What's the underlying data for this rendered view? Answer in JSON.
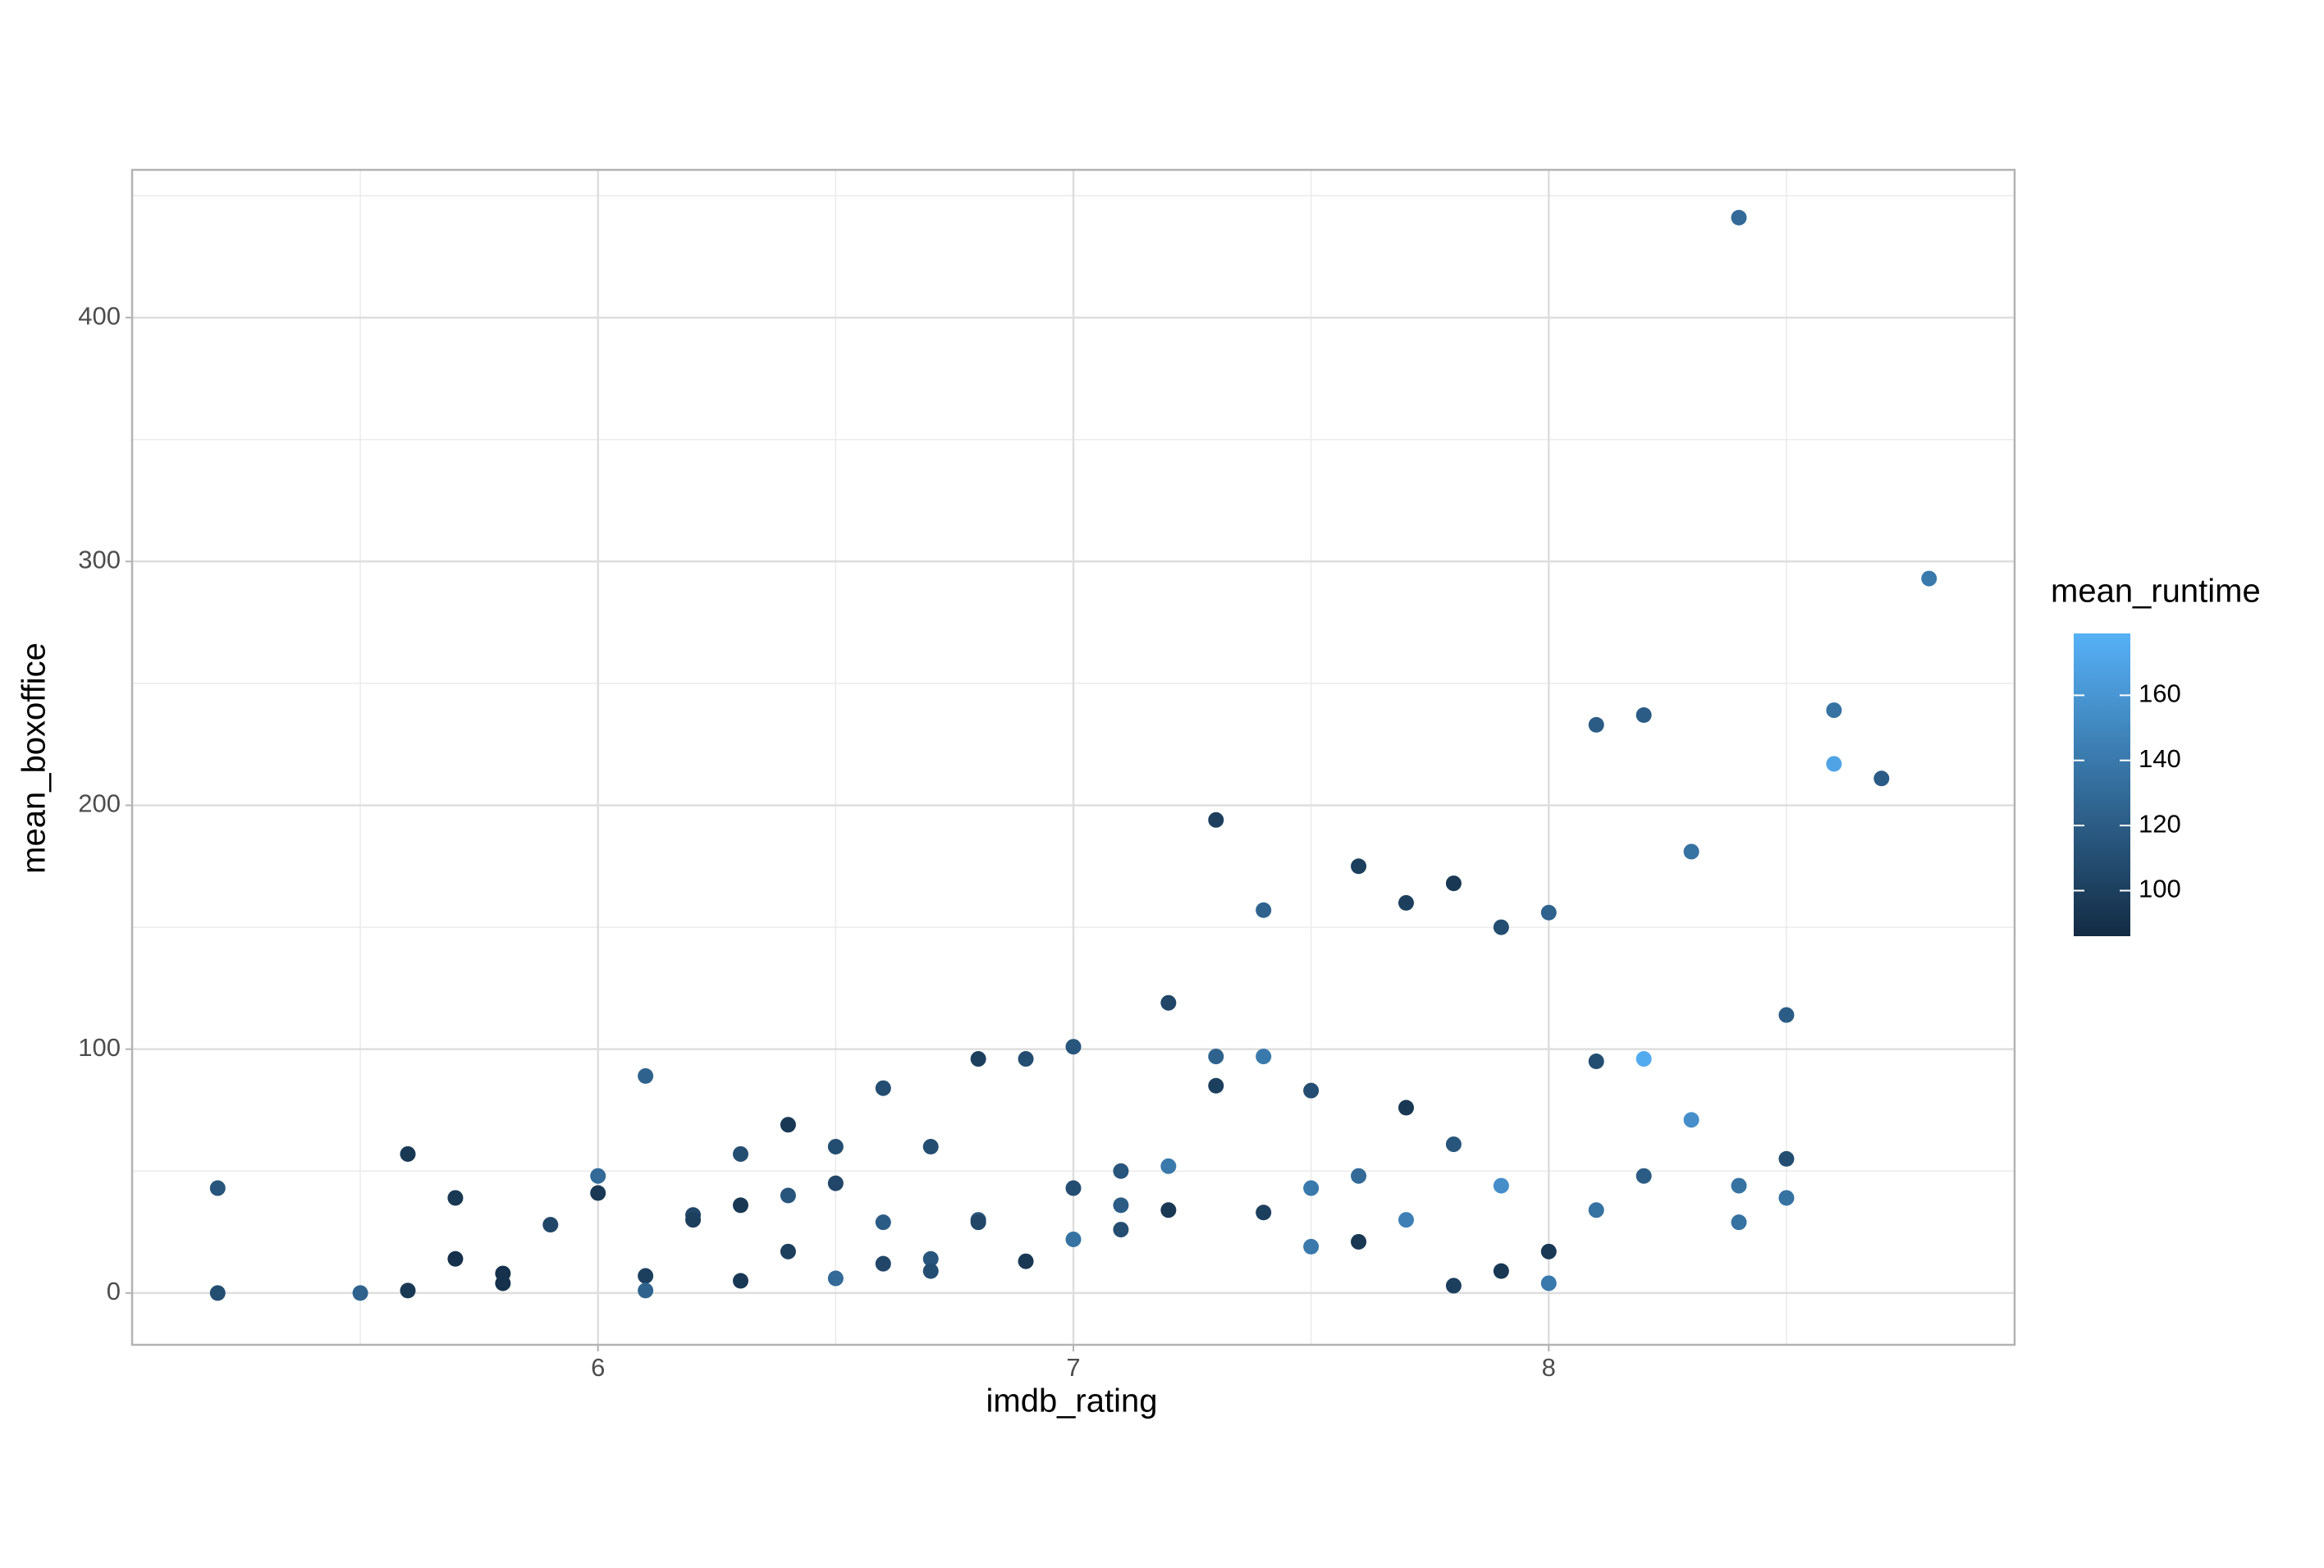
{
  "chart_data": {
    "type": "scatter",
    "x_label": "imdb_rating",
    "y_label": "mean_boxoffice",
    "color_title": "mean_runtime",
    "color_low": "#132b43",
    "color_high": "#56b1f7",
    "color_lim": [
      86,
      179
    ],
    "color_ticks": [
      100,
      120,
      140,
      160
    ],
    "x": [
      5.2,
      5.2,
      5.5,
      5.6,
      5.6,
      5.7,
      5.7,
      5.8,
      5.8,
      5.9,
      6.0,
      6.0,
      6.1,
      6.1,
      6.1,
      6.2,
      6.2,
      6.3,
      6.3,
      6.3,
      6.4,
      6.4,
      6.4,
      6.5,
      6.5,
      6.5,
      6.6,
      6.6,
      6.6,
      6.7,
      6.7,
      6.7,
      6.8,
      6.8,
      6.8,
      6.9,
      6.9,
      7.0,
      7.0,
      7.0,
      7.1,
      7.1,
      7.1,
      7.2,
      7.2,
      7.2,
      7.3,
      7.3,
      7.3,
      7.4,
      7.4,
      7.4,
      7.5,
      7.5,
      7.5,
      7.6,
      7.6,
      7.6,
      7.7,
      7.7,
      7.7,
      7.8,
      7.8,
      7.8,
      7.9,
      7.9,
      7.9,
      8.0,
      8.0,
      8.0,
      8.1,
      8.1,
      8.1,
      8.2,
      8.2,
      8.2,
      8.3,
      8.3,
      8.4,
      8.4,
      8.4,
      8.5,
      8.5,
      8.5,
      8.6,
      8.6,
      8.7,
      8.8
    ],
    "values": [
      43,
      0,
      0,
      57,
      1,
      39,
      14,
      8,
      4,
      28,
      48,
      41,
      89,
      7,
      1,
      32,
      30,
      57,
      36,
      5,
      69,
      40,
      17,
      60,
      45,
      6,
      84,
      29,
      12,
      60,
      14,
      9,
      96,
      30,
      29,
      96,
      13,
      101,
      43,
      22,
      50,
      36,
      26,
      119,
      52,
      34,
      194,
      97,
      85,
      157,
      97,
      33,
      83,
      43,
      19,
      175,
      48,
      21,
      160,
      76,
      30,
      168,
      61,
      3,
      150,
      44,
      9,
      156,
      17,
      4,
      233,
      95,
      34,
      237,
      96,
      48,
      181,
      71,
      441,
      44,
      29,
      114,
      55,
      39,
      239,
      217,
      211,
      293
    ],
    "color_values": [
      115,
      110,
      125,
      95,
      95,
      95,
      90,
      90,
      90,
      105,
      130,
      95,
      125,
      100,
      125,
      105,
      100,
      110,
      95,
      95,
      95,
      115,
      100,
      110,
      105,
      130,
      110,
      120,
      105,
      110,
      115,
      110,
      100,
      115,
      105,
      110,
      95,
      115,
      110,
      135,
      115,
      120,
      110,
      105,
      140,
      95,
      100,
      125,
      100,
      125,
      140,
      100,
      110,
      140,
      140,
      100,
      130,
      95,
      100,
      95,
      145,
      95,
      115,
      100,
      110,
      155,
      95,
      125,
      95,
      140,
      120,
      110,
      135,
      120,
      175,
      120,
      135,
      155,
      130,
      135,
      135,
      120,
      110,
      135,
      135,
      170,
      120,
      140
    ],
    "xlim": [
      5.02,
      8.98
    ],
    "ylim": [
      -21.25,
      460.6
    ],
    "xticks": [
      6,
      7,
      8
    ],
    "yticks": [
      0,
      100,
      200,
      300,
      400
    ],
    "xticks_minor": [
      5.5,
      6.5,
      7.5,
      8.5
    ],
    "yticks_minor": [
      50,
      150,
      250,
      350,
      450
    ],
    "grid": true
  }
}
